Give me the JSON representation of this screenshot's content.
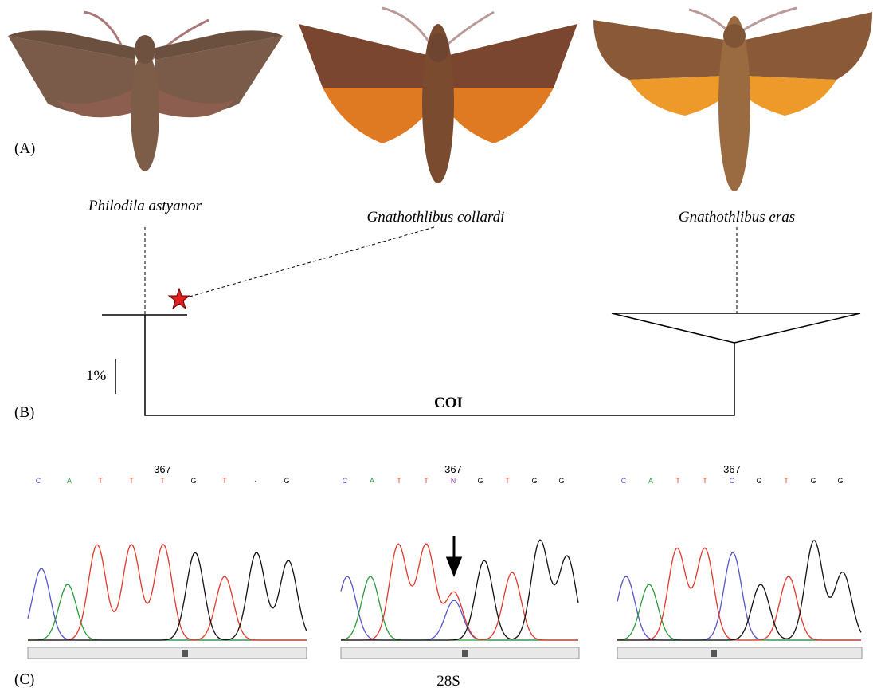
{
  "panels": {
    "a": {
      "label": "(A)",
      "species": [
        "Philodila astyanor",
        "Gnathothlibus collardi",
        "Gnathothlibus eras"
      ]
    },
    "b": {
      "label": "(B)",
      "scale": "1%",
      "gene": "COI"
    },
    "c": {
      "label": "(C)",
      "gene": "28S",
      "traces": [
        {
          "position": "367",
          "bases": [
            "C",
            "A",
            "T",
            "T",
            "T",
            "G",
            "T",
            "-",
            "G"
          ]
        },
        {
          "position": "367",
          "bases": [
            "C",
            "A",
            "T",
            "T",
            "N",
            "G",
            "T",
            "G",
            "G"
          ]
        },
        {
          "position": "367",
          "bases": [
            "C",
            "A",
            "T",
            "T",
            "C",
            "G",
            "T",
            "G",
            "G"
          ]
        }
      ]
    }
  }
}
